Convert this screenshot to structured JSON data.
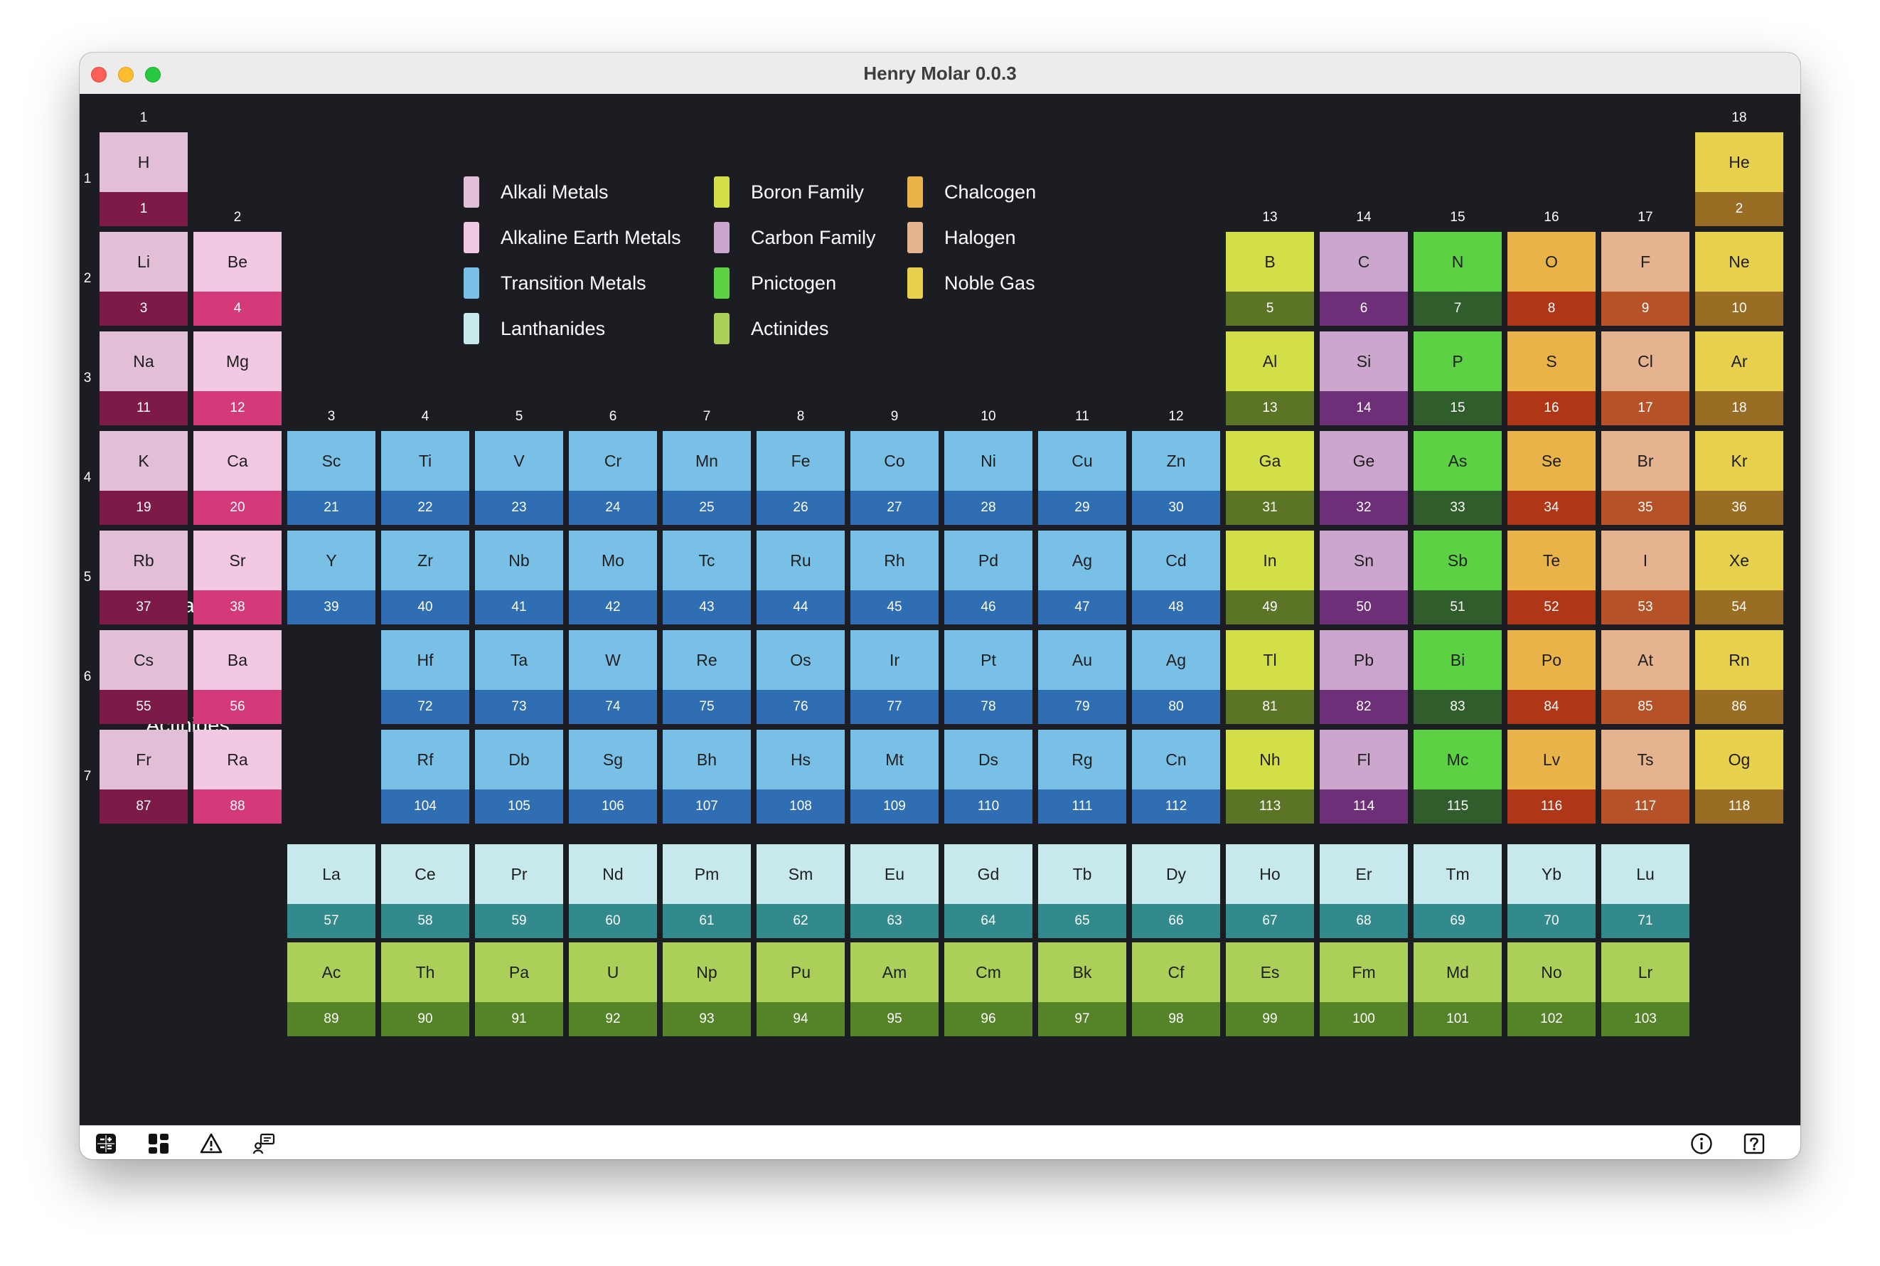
{
  "window": {
    "title": "Henry Molar 0.0.3"
  },
  "colors": {
    "alkali": [
      "#e2bfd7",
      "#7e1a47"
    ],
    "alkaline": [
      "#f2c8e3",
      "#d43a7a"
    ],
    "transition": [
      "#78c0e6",
      "#2f6eb3"
    ],
    "lanthanide": [
      "#c8e9ec",
      "#338a8c"
    ],
    "boron": [
      "#d2df46",
      "#5c7426"
    ],
    "carbon": [
      "#cba6cd",
      "#6e2f79"
    ],
    "pnictogen": [
      "#5cd144",
      "#2f5d2c"
    ],
    "chalcogen": [
      "#e8b349",
      "#b03618"
    ],
    "halogen": [
      "#e5b38f",
      "#b65228"
    ],
    "noble": [
      "#e8d04f",
      "#9a6d25"
    ],
    "actinide": [
      "#abcf59",
      "#548427"
    ]
  },
  "legend": [
    {
      "name": "Alkali Metals",
      "category": "alkali",
      "swatch": "#e2bfd7"
    },
    {
      "name": "Alkaline Earth Metals",
      "category": "alkaline",
      "swatch": "#f2c8e3"
    },
    {
      "name": "Transition Metals",
      "category": "transition",
      "swatch": "#78c0e6"
    },
    {
      "name": "Lanthanides",
      "category": "lanthanide",
      "swatch": "#c8e9ec"
    },
    {
      "name": "Boron Family",
      "category": "boron",
      "swatch": "#d2df46"
    },
    {
      "name": "Carbon Family",
      "category": "carbon",
      "swatch": "#cba6cd"
    },
    {
      "name": "Pnictogen",
      "category": "pnictogen",
      "swatch": "#5cd144"
    },
    {
      "name": "Actinides",
      "category": "actinide",
      "swatch": "#abcf59"
    },
    {
      "name": "Chalcogen",
      "category": "chalcogen",
      "swatch": "#e8b349"
    },
    {
      "name": "Halogen",
      "category": "halogen",
      "swatch": "#e5b38f"
    },
    {
      "name": "Noble Gas",
      "category": "noble",
      "swatch": "#e8d04f"
    }
  ],
  "group_labels": [
    "1",
    "2",
    "3",
    "4",
    "5",
    "6",
    "7",
    "8",
    "9",
    "10",
    "11",
    "12",
    "13",
    "14",
    "15",
    "16",
    "17",
    "18"
  ],
  "period_labels": [
    "1",
    "2",
    "3",
    "4",
    "5",
    "6",
    "7"
  ],
  "series_labels": {
    "lanthanides": "Lanthanides",
    "actinides": "Actinides"
  },
  "elements": [
    {
      "symbol": "H",
      "number": "1",
      "group": 1,
      "period": 1,
      "category": "alkali"
    },
    {
      "symbol": "He",
      "number": "2",
      "group": 18,
      "period": 1,
      "category": "noble"
    },
    {
      "symbol": "Li",
      "number": "3",
      "group": 1,
      "period": 2,
      "category": "alkali"
    },
    {
      "symbol": "Be",
      "number": "4",
      "group": 2,
      "period": 2,
      "category": "alkaline"
    },
    {
      "symbol": "B",
      "number": "5",
      "group": 13,
      "period": 2,
      "category": "boron"
    },
    {
      "symbol": "C",
      "number": "6",
      "group": 14,
      "period": 2,
      "category": "carbon"
    },
    {
      "symbol": "N",
      "number": "7",
      "group": 15,
      "period": 2,
      "category": "pnictogen"
    },
    {
      "symbol": "O",
      "number": "8",
      "group": 16,
      "period": 2,
      "category": "chalcogen"
    },
    {
      "symbol": "F",
      "number": "9",
      "group": 17,
      "period": 2,
      "category": "halogen"
    },
    {
      "symbol": "Ne",
      "number": "10",
      "group": 18,
      "period": 2,
      "category": "noble"
    },
    {
      "symbol": "Na",
      "number": "11",
      "group": 1,
      "period": 3,
      "category": "alkali"
    },
    {
      "symbol": "Mg",
      "number": "12",
      "group": 2,
      "period": 3,
      "category": "alkaline"
    },
    {
      "symbol": "Al",
      "number": "13",
      "group": 13,
      "period": 3,
      "category": "boron"
    },
    {
      "symbol": "Si",
      "number": "14",
      "group": 14,
      "period": 3,
      "category": "carbon"
    },
    {
      "symbol": "P",
      "number": "15",
      "group": 15,
      "period": 3,
      "category": "pnictogen"
    },
    {
      "symbol": "S",
      "number": "16",
      "group": 16,
      "period": 3,
      "category": "chalcogen"
    },
    {
      "symbol": "Cl",
      "number": "17",
      "group": 17,
      "period": 3,
      "category": "halogen"
    },
    {
      "symbol": "Ar",
      "number": "18",
      "group": 18,
      "period": 3,
      "category": "noble"
    },
    {
      "symbol": "K",
      "number": "19",
      "group": 1,
      "period": 4,
      "category": "alkali"
    },
    {
      "symbol": "Ca",
      "number": "20",
      "group": 2,
      "period": 4,
      "category": "alkaline"
    },
    {
      "symbol": "Sc",
      "number": "21",
      "group": 3,
      "period": 4,
      "category": "transition"
    },
    {
      "symbol": "Ti",
      "number": "22",
      "group": 4,
      "period": 4,
      "category": "transition"
    },
    {
      "symbol": "V",
      "number": "23",
      "group": 5,
      "period": 4,
      "category": "transition"
    },
    {
      "symbol": "Cr",
      "number": "24",
      "group": 6,
      "period": 4,
      "category": "transition"
    },
    {
      "symbol": "Mn",
      "number": "25",
      "group": 7,
      "period": 4,
      "category": "transition"
    },
    {
      "symbol": "Fe",
      "number": "26",
      "group": 8,
      "period": 4,
      "category": "transition"
    },
    {
      "symbol": "Co",
      "number": "27",
      "group": 9,
      "period": 4,
      "category": "transition"
    },
    {
      "symbol": "Ni",
      "number": "28",
      "group": 10,
      "period": 4,
      "category": "transition"
    },
    {
      "symbol": "Cu",
      "number": "29",
      "group": 11,
      "period": 4,
      "category": "transition"
    },
    {
      "symbol": "Zn",
      "number": "30",
      "group": 12,
      "period": 4,
      "category": "transition"
    },
    {
      "symbol": "Ga",
      "number": "31",
      "group": 13,
      "period": 4,
      "category": "boron"
    },
    {
      "symbol": "Ge",
      "number": "32",
      "group": 14,
      "period": 4,
      "category": "carbon"
    },
    {
      "symbol": "As",
      "number": "33",
      "group": 15,
      "period": 4,
      "category": "pnictogen"
    },
    {
      "symbol": "Se",
      "number": "34",
      "group": 16,
      "period": 4,
      "category": "chalcogen"
    },
    {
      "symbol": "Br",
      "number": "35",
      "group": 17,
      "period": 4,
      "category": "halogen"
    },
    {
      "symbol": "Kr",
      "number": "36",
      "group": 18,
      "period": 4,
      "category": "noble"
    },
    {
      "symbol": "Rb",
      "number": "37",
      "group": 1,
      "period": 5,
      "category": "alkali"
    },
    {
      "symbol": "Sr",
      "number": "38",
      "group": 2,
      "period": 5,
      "category": "alkaline"
    },
    {
      "symbol": "Y",
      "number": "39",
      "group": 3,
      "period": 5,
      "category": "transition"
    },
    {
      "symbol": "Zr",
      "number": "40",
      "group": 4,
      "period": 5,
      "category": "transition"
    },
    {
      "symbol": "Nb",
      "number": "41",
      "group": 5,
      "period": 5,
      "category": "transition"
    },
    {
      "symbol": "Mo",
      "number": "42",
      "group": 6,
      "period": 5,
      "category": "transition"
    },
    {
      "symbol": "Tc",
      "number": "43",
      "group": 7,
      "period": 5,
      "category": "transition"
    },
    {
      "symbol": "Ru",
      "number": "44",
      "group": 8,
      "period": 5,
      "category": "transition"
    },
    {
      "symbol": "Rh",
      "number": "45",
      "group": 9,
      "period": 5,
      "category": "transition"
    },
    {
      "symbol": "Pd",
      "number": "46",
      "group": 10,
      "period": 5,
      "category": "transition"
    },
    {
      "symbol": "Ag",
      "number": "47",
      "group": 11,
      "period": 5,
      "category": "transition"
    },
    {
      "symbol": "Cd",
      "number": "48",
      "group": 12,
      "period": 5,
      "category": "transition"
    },
    {
      "symbol": "In",
      "number": "49",
      "group": 13,
      "period": 5,
      "category": "boron"
    },
    {
      "symbol": "Sn",
      "number": "50",
      "group": 14,
      "period": 5,
      "category": "carbon"
    },
    {
      "symbol": "Sb",
      "number": "51",
      "group": 15,
      "period": 5,
      "category": "pnictogen"
    },
    {
      "symbol": "Te",
      "number": "52",
      "group": 16,
      "period": 5,
      "category": "chalcogen"
    },
    {
      "symbol": "I",
      "number": "53",
      "group": 17,
      "period": 5,
      "category": "halogen"
    },
    {
      "symbol": "Xe",
      "number": "54",
      "group": 18,
      "period": 5,
      "category": "noble"
    },
    {
      "symbol": "Cs",
      "number": "55",
      "group": 1,
      "period": 6,
      "category": "alkali"
    },
    {
      "symbol": "Ba",
      "number": "56",
      "group": 2,
      "period": 6,
      "category": "alkaline"
    },
    {
      "symbol": "Hf",
      "number": "72",
      "group": 4,
      "period": 6,
      "category": "transition"
    },
    {
      "symbol": "Ta",
      "number": "73",
      "group": 5,
      "period": 6,
      "category": "transition"
    },
    {
      "symbol": "W",
      "number": "74",
      "group": 6,
      "period": 6,
      "category": "transition"
    },
    {
      "symbol": "Re",
      "number": "75",
      "group": 7,
      "period": 6,
      "category": "transition"
    },
    {
      "symbol": "Os",
      "number": "76",
      "group": 8,
      "period": 6,
      "category": "transition"
    },
    {
      "symbol": "Ir",
      "number": "77",
      "group": 9,
      "period": 6,
      "category": "transition"
    },
    {
      "symbol": "Pt",
      "number": "78",
      "group": 10,
      "period": 6,
      "category": "transition"
    },
    {
      "symbol": "Au",
      "number": "79",
      "group": 11,
      "period": 6,
      "category": "transition"
    },
    {
      "symbol": "Ag",
      "number": "80",
      "group": 12,
      "period": 6,
      "category": "transition"
    },
    {
      "symbol": "Tl",
      "number": "81",
      "group": 13,
      "period": 6,
      "category": "boron"
    },
    {
      "symbol": "Pb",
      "number": "82",
      "group": 14,
      "period": 6,
      "category": "carbon"
    },
    {
      "symbol": "Bi",
      "number": "83",
      "group": 15,
      "period": 6,
      "category": "pnictogen"
    },
    {
      "symbol": "Po",
      "number": "84",
      "group": 16,
      "period": 6,
      "category": "chalcogen"
    },
    {
      "symbol": "At",
      "number": "85",
      "group": 17,
      "period": 6,
      "category": "halogen"
    },
    {
      "symbol": "Rn",
      "number": "86",
      "group": 18,
      "period": 6,
      "category": "noble"
    },
    {
      "symbol": "Fr",
      "number": "87",
      "group": 1,
      "period": 7,
      "category": "alkali"
    },
    {
      "symbol": "Ra",
      "number": "88",
      "group": 2,
      "period": 7,
      "category": "alkaline"
    },
    {
      "symbol": "Rf",
      "number": "104",
      "group": 4,
      "period": 7,
      "category": "transition"
    },
    {
      "symbol": "Db",
      "number": "105",
      "group": 5,
      "period": 7,
      "category": "transition"
    },
    {
      "symbol": "Sg",
      "number": "106",
      "group": 6,
      "period": 7,
      "category": "transition"
    },
    {
      "symbol": "Bh",
      "number": "107",
      "group": 7,
      "period": 7,
      "category": "transition"
    },
    {
      "symbol": "Hs",
      "number": "108",
      "group": 8,
      "period": 7,
      "category": "transition"
    },
    {
      "symbol": "Mt",
      "number": "109",
      "group": 9,
      "period": 7,
      "category": "transition"
    },
    {
      "symbol": "Ds",
      "number": "110",
      "group": 10,
      "period": 7,
      "category": "transition"
    },
    {
      "symbol": "Rg",
      "number": "111",
      "group": 11,
      "period": 7,
      "category": "transition"
    },
    {
      "symbol": "Cn",
      "number": "112",
      "group": 12,
      "period": 7,
      "category": "transition"
    },
    {
      "symbol": "Nh",
      "number": "113",
      "group": 13,
      "period": 7,
      "category": "boron"
    },
    {
      "symbol": "Fl",
      "number": "114",
      "group": 14,
      "period": 7,
      "category": "carbon"
    },
    {
      "symbol": "Mc",
      "number": "115",
      "group": 15,
      "period": 7,
      "category": "pnictogen"
    },
    {
      "symbol": "Lv",
      "number": "116",
      "group": 16,
      "period": 7,
      "category": "chalcogen"
    },
    {
      "symbol": "Ts",
      "number": "117",
      "group": 17,
      "period": 7,
      "category": "halogen"
    },
    {
      "symbol": "Og",
      "number": "118",
      "group": 18,
      "period": 7,
      "category": "noble"
    },
    {
      "symbol": "La",
      "number": "57",
      "series": "lanthanide",
      "index": 0,
      "category": "lanthanide"
    },
    {
      "symbol": "Ce",
      "number": "58",
      "series": "lanthanide",
      "index": 1,
      "category": "lanthanide"
    },
    {
      "symbol": "Pr",
      "number": "59",
      "series": "lanthanide",
      "index": 2,
      "category": "lanthanide"
    },
    {
      "symbol": "Nd",
      "number": "60",
      "series": "lanthanide",
      "index": 3,
      "category": "lanthanide"
    },
    {
      "symbol": "Pm",
      "number": "61",
      "series": "lanthanide",
      "index": 4,
      "category": "lanthanide"
    },
    {
      "symbol": "Sm",
      "number": "62",
      "series": "lanthanide",
      "index": 5,
      "category": "lanthanide"
    },
    {
      "symbol": "Eu",
      "number": "63",
      "series": "lanthanide",
      "index": 6,
      "category": "lanthanide"
    },
    {
      "symbol": "Gd",
      "number": "64",
      "series": "lanthanide",
      "index": 7,
      "category": "lanthanide"
    },
    {
      "symbol": "Tb",
      "number": "65",
      "series": "lanthanide",
      "index": 8,
      "category": "lanthanide"
    },
    {
      "symbol": "Dy",
      "number": "66",
      "series": "lanthanide",
      "index": 9,
      "category": "lanthanide"
    },
    {
      "symbol": "Ho",
      "number": "67",
      "series": "lanthanide",
      "index": 10,
      "category": "lanthanide"
    },
    {
      "symbol": "Er",
      "number": "68",
      "series": "lanthanide",
      "index": 11,
      "category": "lanthanide"
    },
    {
      "symbol": "Tm",
      "number": "69",
      "series": "lanthanide",
      "index": 12,
      "category": "lanthanide"
    },
    {
      "symbol": "Yb",
      "number": "70",
      "series": "lanthanide",
      "index": 13,
      "category": "lanthanide"
    },
    {
      "symbol": "Lu",
      "number": "71",
      "series": "lanthanide",
      "index": 14,
      "category": "lanthanide"
    },
    {
      "symbol": "Ac",
      "number": "89",
      "series": "actinide",
      "index": 0,
      "category": "actinide"
    },
    {
      "symbol": "Th",
      "number": "90",
      "series": "actinide",
      "index": 1,
      "category": "actinide"
    },
    {
      "symbol": "Pa",
      "number": "91",
      "series": "actinide",
      "index": 2,
      "category": "actinide"
    },
    {
      "symbol": "U",
      "number": "92",
      "series": "actinide",
      "index": 3,
      "category": "actinide"
    },
    {
      "symbol": "Np",
      "number": "93",
      "series": "actinide",
      "index": 4,
      "category": "actinide"
    },
    {
      "symbol": "Pu",
      "number": "94",
      "series": "actinide",
      "index": 5,
      "category": "actinide"
    },
    {
      "symbol": "Am",
      "number": "95",
      "series": "actinide",
      "index": 6,
      "category": "actinide"
    },
    {
      "symbol": "Cm",
      "number": "96",
      "series": "actinide",
      "index": 7,
      "category": "actinide"
    },
    {
      "symbol": "Bk",
      "number": "97",
      "series": "actinide",
      "index": 8,
      "category": "actinide"
    },
    {
      "symbol": "Cf",
      "number": "98",
      "series": "actinide",
      "index": 9,
      "category": "actinide"
    },
    {
      "symbol": "Es",
      "number": "99",
      "series": "actinide",
      "index": 10,
      "category": "actinide"
    },
    {
      "symbol": "Fm",
      "number": "100",
      "series": "actinide",
      "index": 11,
      "category": "actinide"
    },
    {
      "symbol": "Md",
      "number": "101",
      "series": "actinide",
      "index": 12,
      "category": "actinide"
    },
    {
      "symbol": "No",
      "number": "102",
      "series": "actinide",
      "index": 13,
      "category": "actinide"
    },
    {
      "symbol": "Lr",
      "number": "103",
      "series": "actinide",
      "index": 14,
      "category": "actinide"
    }
  ],
  "statusbar": {
    "left_icons": [
      "calculator-icon",
      "dashboard-icon",
      "warning-icon",
      "molecule-icon"
    ],
    "right_icons": [
      "info-icon",
      "help-icon"
    ]
  }
}
